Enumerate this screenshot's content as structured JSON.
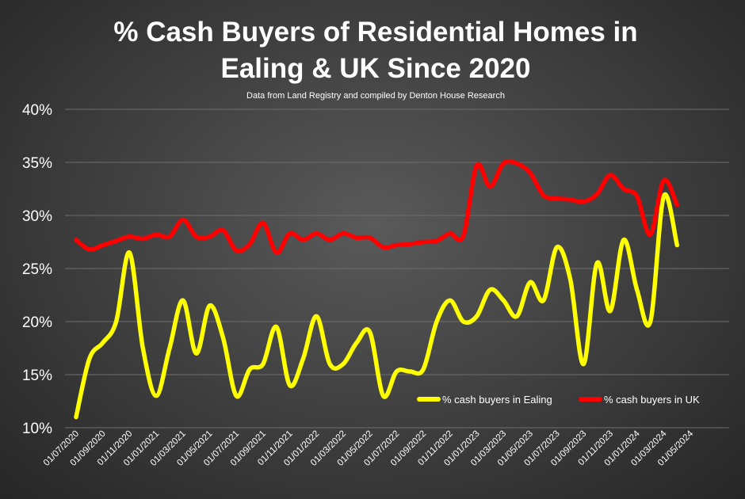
{
  "chart_data": {
    "type": "line",
    "title_line1": "% Cash Buyers of Residential Homes in",
    "title_line2": "Ealing & UK Since 2020",
    "subtitle": "Data from Land Registry and compiled by Denton House Research",
    "ylim": [
      0.1,
      0.4
    ],
    "yticks": [
      "10%",
      "15%",
      "20%",
      "25%",
      "30%",
      "35%",
      "40%"
    ],
    "grid": true,
    "legend_position": "bottom-right",
    "x_tick_labels": [
      "01/07/2020",
      "01/09/2020",
      "01/11/2020",
      "01/01/2021",
      "01/03/2021",
      "01/05/2021",
      "01/07/2021",
      "01/09/2021",
      "01/11/2021",
      "01/01/2022",
      "01/03/2022",
      "01/05/2022",
      "01/07/2022",
      "01/09/2022",
      "01/11/2022",
      "01/01/2023",
      "01/03/2023",
      "01/05/2023",
      "01/07/2023",
      "01/09/2023",
      "01/11/2023",
      "01/01/2024",
      "01/03/2024",
      "01/05/2024"
    ],
    "x": [
      "2020-07",
      "2020-08",
      "2020-09",
      "2020-10",
      "2020-11",
      "2020-12",
      "2021-01",
      "2021-02",
      "2021-03",
      "2021-04",
      "2021-05",
      "2021-06",
      "2021-07",
      "2021-08",
      "2021-09",
      "2021-10",
      "2021-11",
      "2021-12",
      "2022-01",
      "2022-02",
      "2022-03",
      "2022-04",
      "2022-05",
      "2022-06",
      "2022-07",
      "2022-08",
      "2022-09",
      "2022-10",
      "2022-11",
      "2022-12",
      "2023-01",
      "2023-02",
      "2023-03",
      "2023-04",
      "2023-05",
      "2023-06",
      "2023-07",
      "2023-08",
      "2023-09",
      "2023-10",
      "2023-11",
      "2023-12",
      "2024-01",
      "2024-02",
      "2024-03",
      "2024-04"
    ],
    "series": [
      {
        "name": "% cash buyers in Ealing",
        "color": "#ffff00",
        "values": [
          0.11,
          0.165,
          0.18,
          0.2,
          0.265,
          0.175,
          0.13,
          0.175,
          0.22,
          0.17,
          0.215,
          0.185,
          0.13,
          0.155,
          0.16,
          0.195,
          0.14,
          0.165,
          0.205,
          0.16,
          0.16,
          0.18,
          0.19,
          0.13,
          0.153,
          0.153,
          0.155,
          0.2,
          0.22,
          0.2,
          0.205,
          0.23,
          0.22,
          0.205,
          0.237,
          0.22,
          0.27,
          0.24,
          0.16,
          0.255,
          0.21,
          0.277,
          0.23,
          0.2,
          0.318,
          0.272
        ]
      },
      {
        "name": "% cash buyers in UK",
        "color": "#ff0000",
        "values": [
          0.277,
          0.268,
          0.272,
          0.276,
          0.28,
          0.278,
          0.282,
          0.28,
          0.296,
          0.28,
          0.28,
          0.286,
          0.267,
          0.273,
          0.293,
          0.265,
          0.283,
          0.277,
          0.283,
          0.277,
          0.283,
          0.279,
          0.279,
          0.27,
          0.272,
          0.273,
          0.275,
          0.276,
          0.283,
          0.281,
          0.347,
          0.327,
          0.349,
          0.349,
          0.34,
          0.319,
          0.316,
          0.315,
          0.313,
          0.32,
          0.338,
          0.325,
          0.318,
          0.282,
          0.333,
          0.31
        ]
      }
    ]
  }
}
